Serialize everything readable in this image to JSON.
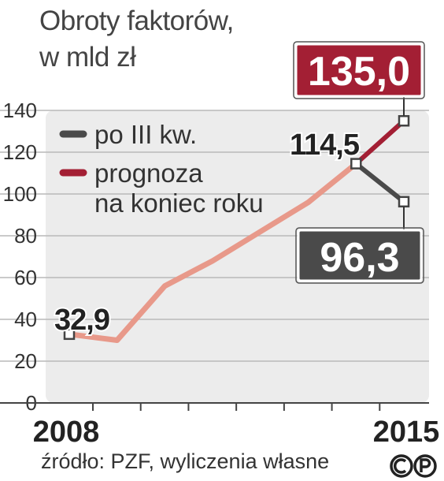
{
  "title": [
    "Obroty faktorów,",
    "w mld zł"
  ],
  "source": "źródło: PZF, wyliczenia własne",
  "copyright_icon": "copyright-cp-icon",
  "colors": {
    "history_line": "#e8998a",
    "actual_line": "#4a4a4a",
    "forecast_line": "#a31f34",
    "plot_bg": "#ececec",
    "forecast_box": "#a31f34",
    "actual_box": "#4a4a4a"
  },
  "chart_data": {
    "type": "line",
    "x": [
      2008,
      2009,
      2010,
      2011,
      2012,
      2013,
      2014,
      2015
    ],
    "x_tick_labels": [
      "2008",
      "2015"
    ],
    "y_ticks": [
      "0",
      "20",
      "40",
      "60",
      "80",
      "100",
      "120",
      "140"
    ],
    "ylim": [
      0,
      140
    ],
    "history": {
      "x": [
        2008,
        2009,
        2010,
        2011,
        2012,
        2013,
        2014
      ],
      "values": [
        32.9,
        30,
        56,
        68,
        82,
        96,
        114.5
      ]
    },
    "series": [
      {
        "name": "po III kw.",
        "x": [
          2014,
          2015
        ],
        "values": [
          114.5,
          96.3
        ]
      },
      {
        "name": "prognoza na koniec roku",
        "x": [
          2014,
          2015
        ],
        "values": [
          114.5,
          135.0
        ]
      }
    ],
    "legend": [
      "po III kw.",
      "prognoza",
      "na koniec roku"
    ],
    "labels": {
      "start": "32,9",
      "y2014": "114,5",
      "forecast": "135,0",
      "actual": "96,3"
    },
    "grid": true,
    "legend_position": "top-left"
  }
}
